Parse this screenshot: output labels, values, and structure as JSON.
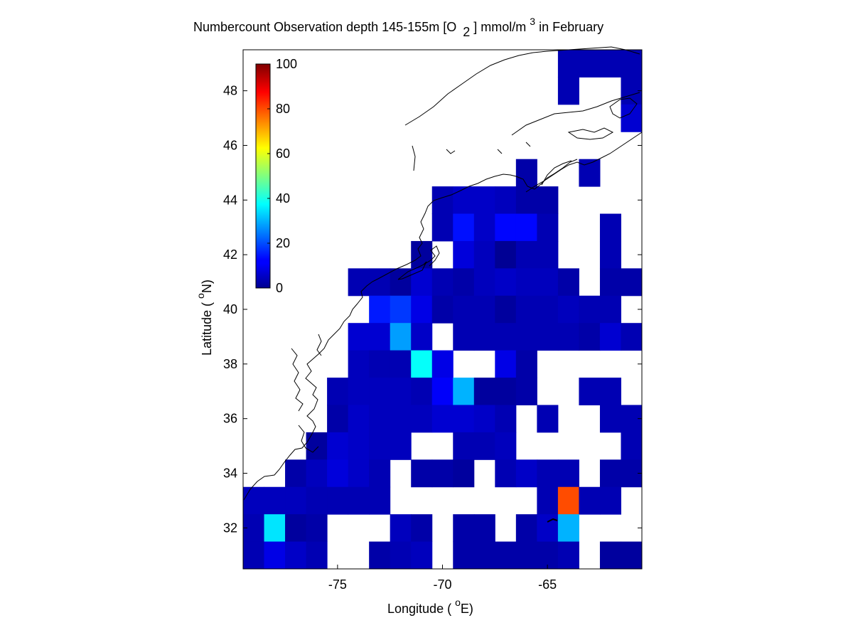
{
  "title": {
    "main": "Numbercount Observation depth 145-155m [O",
    "sub": "2",
    "mid": "] mmol/m",
    "sup": "3",
    "tail": " in February"
  },
  "axes": {
    "xlabel_pre": "Longitude ( ",
    "xlabel_deg": "o",
    "xlabel_post": "E)",
    "ylabel_pre": "Latitude ( ",
    "ylabel_deg": "o",
    "ylabel_post": "N)",
    "xlim": [
      -79.5,
      -60.5
    ],
    "ylim": [
      30.5,
      49.5
    ],
    "xticks": [
      "-75",
      "-70",
      "-65"
    ],
    "xtick_values": [
      -75,
      -70,
      -65
    ],
    "yticks": [
      "32",
      "34",
      "36",
      "38",
      "40",
      "42",
      "44",
      "46",
      "48"
    ],
    "ytick_values": [
      32,
      34,
      36,
      38,
      40,
      42,
      44,
      46,
      48
    ]
  },
  "colorbar": {
    "ticks": [
      "0",
      "20",
      "40",
      "60",
      "80",
      "100"
    ],
    "tick_values": [
      0,
      20,
      40,
      60,
      80,
      100
    ],
    "range": [
      0,
      100
    ],
    "colormap": "jet"
  },
  "chart_data": {
    "type": "heatmap",
    "description_of_cells": "1x1 degree grid cells, value = observation count",
    "x_centers": [
      -79,
      -78,
      -77,
      -76,
      -75,
      -74,
      -73,
      -72,
      -71,
      -70,
      -69,
      -68,
      -67,
      -66,
      -65,
      -64,
      -63,
      -62,
      -61
    ],
    "y_rows_top_to_bottom": [
      49,
      48,
      47,
      46,
      45,
      44,
      43,
      42,
      41,
      40,
      39,
      38,
      37,
      36,
      35,
      34,
      33,
      32,
      31
    ],
    "values": [
      [
        null,
        null,
        null,
        null,
        null,
        null,
        null,
        null,
        null,
        null,
        null,
        null,
        null,
        null,
        null,
        5,
        5,
        5,
        5
      ],
      [
        null,
        null,
        null,
        null,
        null,
        null,
        null,
        null,
        null,
        null,
        null,
        null,
        null,
        null,
        null,
        5,
        null,
        null,
        5
      ],
      [
        null,
        null,
        null,
        null,
        null,
        null,
        null,
        null,
        null,
        null,
        null,
        null,
        null,
        null,
        null,
        null,
        null,
        null,
        8
      ],
      [
        null,
        null,
        null,
        null,
        null,
        null,
        null,
        null,
        null,
        null,
        null,
        null,
        null,
        null,
        null,
        null,
        null,
        null,
        null
      ],
      [
        null,
        null,
        null,
        null,
        null,
        null,
        null,
        null,
        null,
        null,
        null,
        null,
        null,
        4,
        null,
        null,
        5,
        null,
        null
      ],
      [
        null,
        null,
        null,
        null,
        null,
        null,
        null,
        null,
        null,
        5,
        7,
        7,
        6,
        4,
        4,
        null,
        null,
        null,
        null
      ],
      [
        null,
        null,
        null,
        null,
        null,
        null,
        null,
        null,
        null,
        5,
        14,
        7,
        13,
        13,
        5,
        null,
        null,
        5,
        null
      ],
      [
        null,
        null,
        null,
        null,
        null,
        null,
        null,
        null,
        3,
        null,
        9,
        6,
        2,
        5,
        5,
        null,
        null,
        5,
        null
      ],
      [
        null,
        null,
        null,
        null,
        null,
        5,
        5,
        3,
        8,
        5,
        4,
        6,
        7,
        6,
        6,
        4,
        null,
        4,
        4
      ],
      [
        null,
        null,
        null,
        null,
        null,
        null,
        15,
        18,
        10,
        4,
        5,
        5,
        3,
        5,
        5,
        6,
        5,
        5,
        null
      ],
      [
        null,
        null,
        null,
        null,
        null,
        8,
        8,
        28,
        7,
        null,
        5,
        5,
        5,
        5,
        5,
        5,
        4,
        8,
        5
      ],
      [
        null,
        null,
        null,
        null,
        null,
        6,
        5,
        5,
        38,
        10,
        null,
        null,
        10,
        4,
        null,
        null,
        null,
        null,
        null
      ],
      [
        null,
        null,
        null,
        null,
        5,
        6,
        6,
        6,
        5,
        12,
        30,
        3,
        3,
        4,
        null,
        null,
        5,
        5,
        null
      ],
      [
        null,
        null,
        null,
        null,
        4,
        7,
        6,
        6,
        6,
        8,
        8,
        7,
        5,
        null,
        5,
        null,
        null,
        5,
        5
      ],
      [
        null,
        null,
        null,
        3,
        8,
        7,
        6,
        6,
        null,
        null,
        5,
        5,
        6,
        null,
        null,
        null,
        null,
        null,
        5
      ],
      [
        null,
        null,
        4,
        6,
        9,
        7,
        5,
        null,
        4,
        4,
        3,
        null,
        5,
        7,
        5,
        5,
        null,
        4,
        4
      ],
      [
        6,
        6,
        6,
        5,
        5,
        5,
        5,
        null,
        null,
        null,
        null,
        null,
        null,
        null,
        5,
        80,
        5,
        5,
        null
      ],
      [
        5,
        35,
        3,
        4,
        null,
        null,
        null,
        6,
        4,
        null,
        4,
        4,
        null,
        4,
        7,
        30,
        null,
        null,
        null
      ],
      [
        5,
        10,
        7,
        5,
        null,
        null,
        4,
        5,
        6,
        null,
        4,
        4,
        4,
        4,
        4,
        5,
        null,
        3,
        3
      ]
    ]
  },
  "colors": {
    "colormap": "jet",
    "coastline": "#000000",
    "frame": "#000000",
    "background": "#ffffff"
  }
}
